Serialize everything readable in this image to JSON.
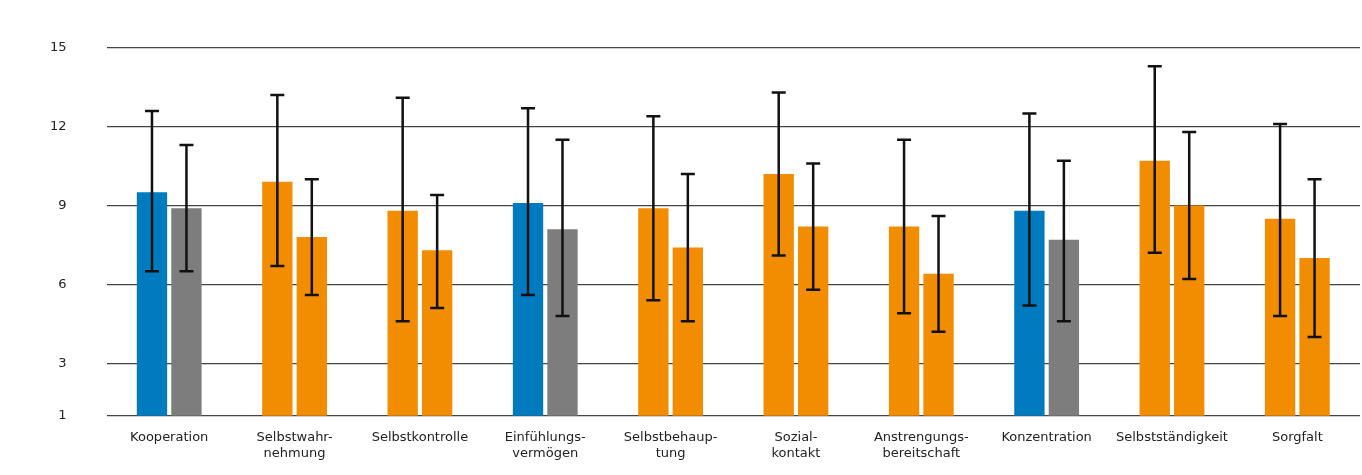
{
  "chart_data": {
    "type": "bar",
    "categories": [
      "Kooperation",
      "Selbstwahr-\nnehmung",
      "Selbstkontrolle",
      "Einfühlungs-\nvermögen",
      "Selbstbehaup-\ntung",
      "Sozial-\nkontakt",
      "Anstrengungs-\nbereitschaft",
      "Konzentration",
      "Selbstständigkeit",
      "Sorgfalt"
    ],
    "series": [
      {
        "colors": [
          "#007bc0",
          "#f28c00",
          "#f28c00",
          "#007bc0",
          "#f28c00",
          "#f28c00",
          "#f28c00",
          "#007bc0",
          "#f28c00",
          "#f28c00"
        ],
        "values": [
          9.5,
          9.9,
          8.8,
          9.1,
          8.9,
          10.2,
          8.2,
          8.8,
          10.7,
          8.5
        ],
        "errors": [
          [
            6.5,
            12.6
          ],
          [
            6.7,
            13.2
          ],
          [
            4.6,
            13.1
          ],
          [
            5.6,
            12.7
          ],
          [
            5.4,
            12.4
          ],
          [
            7.1,
            13.3
          ],
          [
            4.9,
            11.5
          ],
          [
            5.2,
            12.5
          ],
          [
            7.2,
            14.3
          ],
          [
            4.8,
            12.1
          ]
        ]
      },
      {
        "colors": [
          "#7d7d7d",
          "#f28c00",
          "#f28c00",
          "#7d7d7d",
          "#f28c00",
          "#f28c00",
          "#f28c00",
          "#7d7d7d",
          "#f28c00",
          "#f28c00"
        ],
        "values": [
          8.9,
          7.8,
          7.3,
          8.1,
          7.4,
          8.2,
          6.4,
          7.7,
          9.0,
          7.0
        ],
        "errors": [
          [
            6.5,
            11.3
          ],
          [
            5.6,
            10.0
          ],
          [
            5.1,
            9.4
          ],
          [
            4.8,
            11.5
          ],
          [
            4.6,
            10.2
          ],
          [
            5.8,
            10.6
          ],
          [
            4.2,
            8.6
          ],
          [
            4.6,
            10.7
          ],
          [
            6.2,
            11.8
          ],
          [
            4.0,
            10.0
          ]
        ]
      }
    ],
    "ylim": [
      1,
      15
    ],
    "yticks": [
      1,
      3,
      6,
      9,
      12,
      15
    ],
    "grid": "y",
    "legend": false
  }
}
